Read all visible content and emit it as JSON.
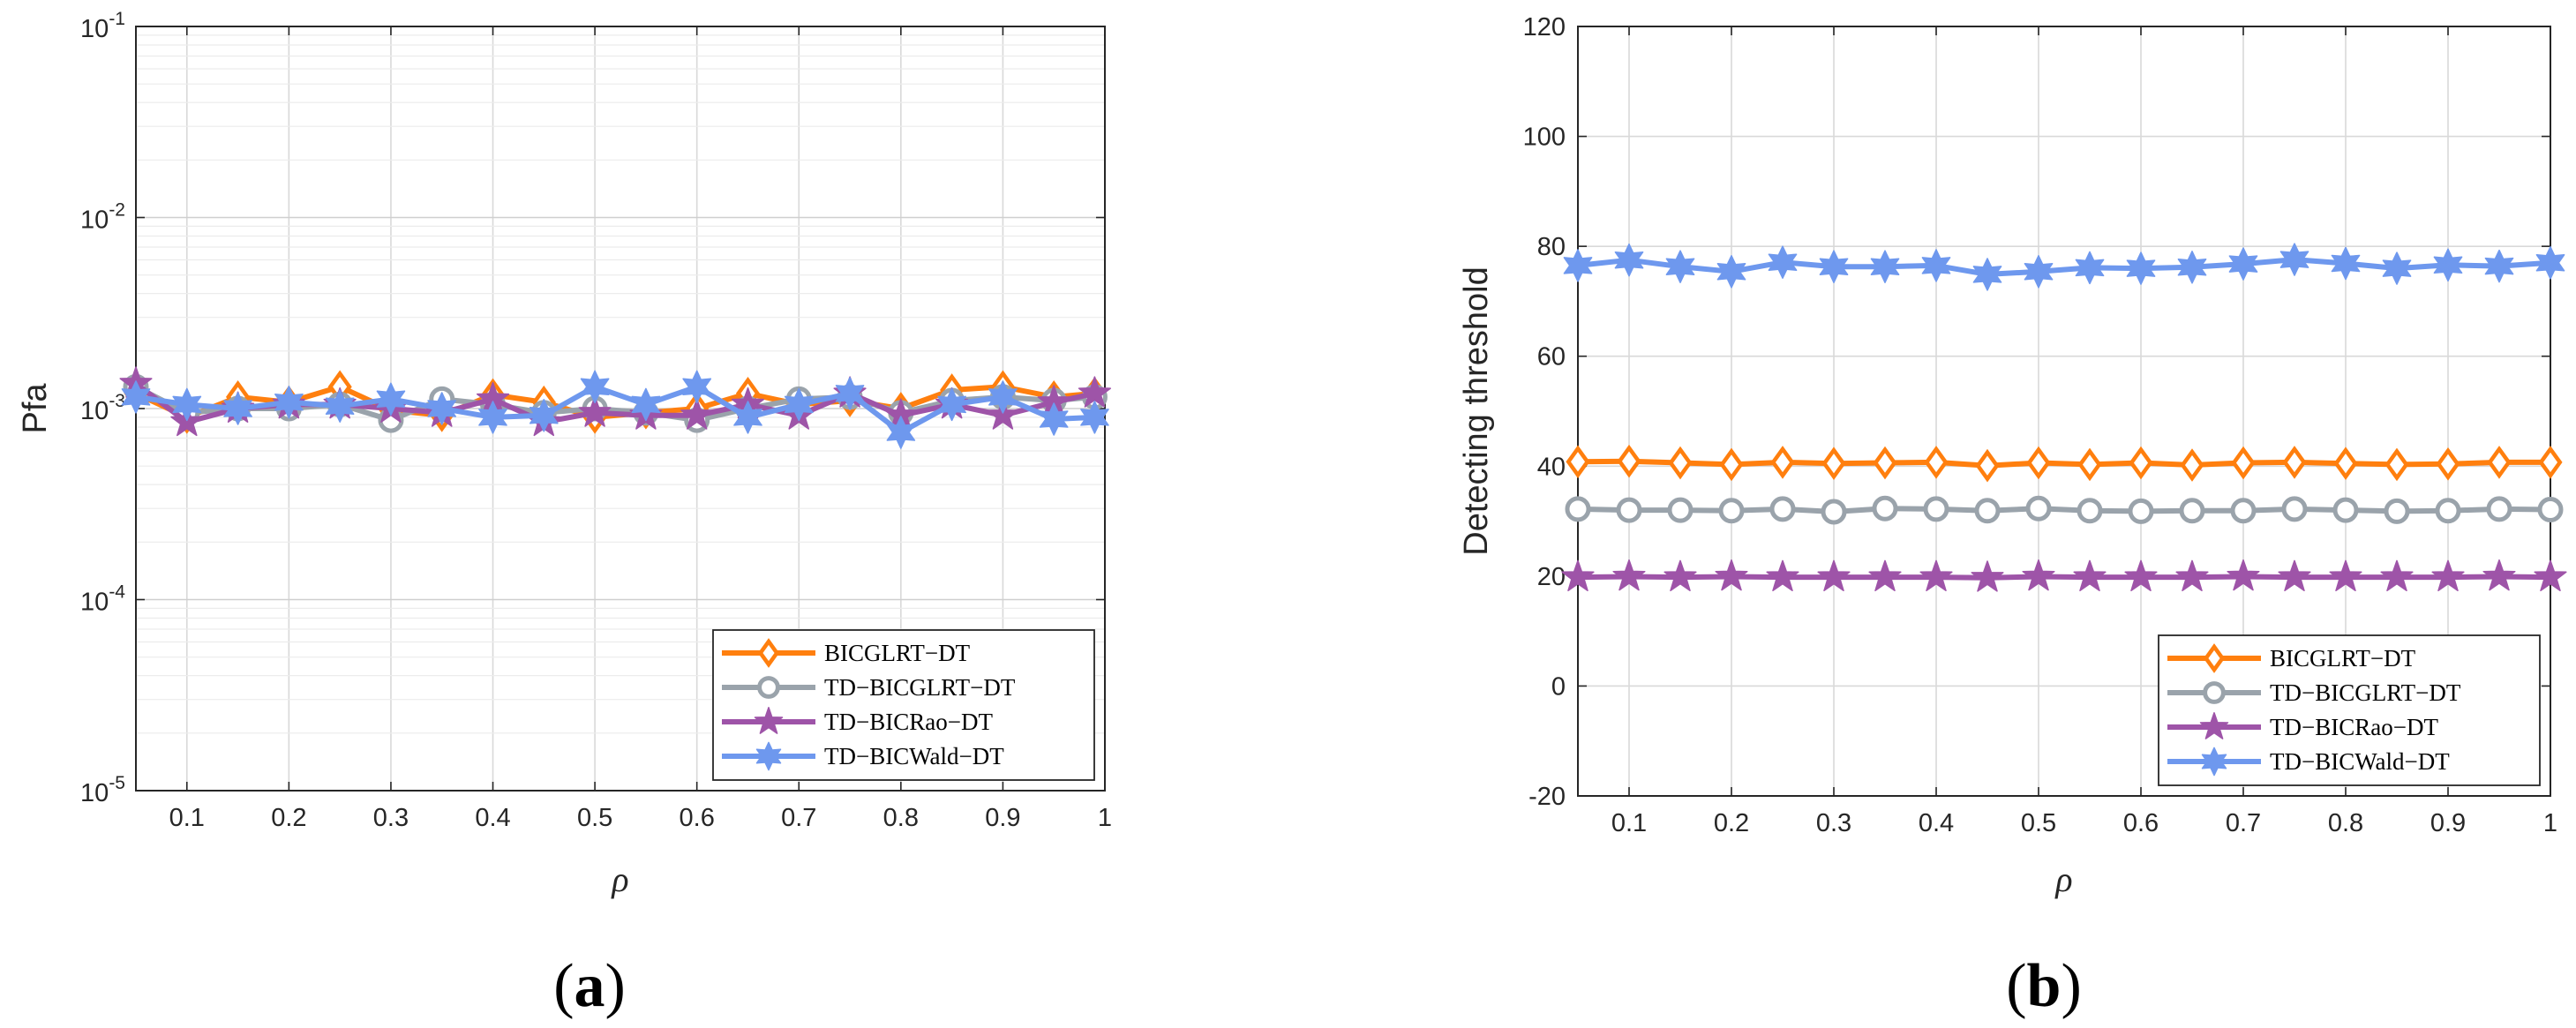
{
  "colors": {
    "BICGLRT-DT": "#FF7F0E",
    "TD-BICGLRT-DT": "#9AA3AB",
    "TD-BICRao-DT": "#9E54A8",
    "TD-BICWald-DT": "#6E98EE"
  },
  "chart_data": [
    {
      "type": "line",
      "panel_label": "a",
      "panel_label_parts": {
        "open": "(",
        "letter": "a",
        "close": ")"
      },
      "xlabel": "ρ",
      "ylabel": "Pfa",
      "yscale": "log",
      "xlim": [
        0.05,
        1.0
      ],
      "ylim": [
        1e-05,
        0.1
      ],
      "xticks": [
        "0.1",
        "0.2",
        "0.3",
        "0.4",
        "0.5",
        "0.6",
        "0.7",
        "0.8",
        "0.9",
        "1"
      ],
      "yticks": [
        {
          "base": "10",
          "exp": "-1"
        },
        {
          "base": "10",
          "exp": "-2"
        },
        {
          "base": "10",
          "exp": "-3"
        },
        {
          "base": "10",
          "exp": "-4"
        },
        {
          "base": "10",
          "exp": "-5"
        }
      ],
      "grid": true,
      "legend_position": "bottom-right",
      "x": [
        0.05,
        0.1,
        0.15,
        0.2,
        0.25,
        0.3,
        0.35,
        0.4,
        0.45,
        0.5,
        0.55,
        0.6,
        0.65,
        0.7,
        0.75,
        0.8,
        0.85,
        0.9,
        0.95,
        0.99
      ],
      "series": [
        {
          "name": "BICGLRT-DT",
          "marker": "diamond",
          "values": [
            0.0012,
            0.0009,
            0.00115,
            0.00108,
            0.0013,
            0.00098,
            0.00092,
            0.00118,
            0.00108,
            0.0009,
            0.00095,
            0.001,
            0.0012,
            0.00105,
            0.0011,
            0.001,
            0.00125,
            0.0013,
            0.00115,
            0.0012
          ]
        },
        {
          "name": "TD-BICGLRT-DT",
          "marker": "circle",
          "values": [
            0.0013,
            0.00095,
            0.001,
            0.001,
            0.00105,
            0.00087,
            0.00112,
            0.00105,
            0.00095,
            0.001,
            0.00095,
            0.00087,
            0.001,
            0.00112,
            0.00115,
            0.00095,
            0.0011,
            0.00115,
            0.0011,
            0.00115
          ]
        },
        {
          "name": "TD-BICRao-DT",
          "marker": "star",
          "values": [
            0.00135,
            0.00085,
            0.001,
            0.00105,
            0.00105,
            0.001,
            0.00095,
            0.00112,
            0.00085,
            0.00095,
            0.00092,
            0.00092,
            0.00105,
            0.00092,
            0.0012,
            0.00092,
            0.00105,
            0.00092,
            0.00108,
            0.0012
          ]
        },
        {
          "name": "TD-BICWald-DT",
          "marker": "hexagram",
          "values": [
            0.00115,
            0.00105,
            0.001,
            0.00108,
            0.00103,
            0.00112,
            0.001,
            0.0009,
            0.00092,
            0.0013,
            0.00105,
            0.0013,
            0.0009,
            0.00105,
            0.0012,
            0.00075,
            0.00105,
            0.00115,
            0.00088,
            0.0009
          ]
        }
      ]
    },
    {
      "type": "line",
      "panel_label": "b",
      "panel_label_parts": {
        "open": "(",
        "letter": "b",
        "close": ")"
      },
      "xlabel": "ρ",
      "ylabel": "Detecting threshold",
      "yscale": "linear",
      "xlim": [
        0.05,
        1.0
      ],
      "ylim": [
        -20,
        120
      ],
      "xticks": [
        "0.1",
        "0.2",
        "0.3",
        "0.4",
        "0.5",
        "0.6",
        "0.7",
        "0.8",
        "0.9",
        "1"
      ],
      "yticks": [
        "120",
        "100",
        "80",
        "60",
        "40",
        "20",
        "0",
        "-20"
      ],
      "grid": true,
      "legend_position": "bottom-right",
      "x": [
        0.05,
        0.1,
        0.15,
        0.2,
        0.25,
        0.3,
        0.35,
        0.4,
        0.45,
        0.5,
        0.55,
        0.6,
        0.65,
        0.7,
        0.75,
        0.8,
        0.85,
        0.9,
        0.95,
        1.0
      ],
      "series": [
        {
          "name": "BICGLRT-DT",
          "marker": "diamond",
          "values": [
            40.8,
            40.9,
            40.6,
            40.3,
            40.7,
            40.5,
            40.6,
            40.7,
            40.1,
            40.6,
            40.3,
            40.6,
            40.2,
            40.6,
            40.7,
            40.5,
            40.3,
            40.4,
            40.7,
            40.7
          ]
        },
        {
          "name": "TD-BICGLRT-DT",
          "marker": "circle",
          "values": [
            32.2,
            32.0,
            32.0,
            31.9,
            32.2,
            31.7,
            32.3,
            32.2,
            31.9,
            32.3,
            31.9,
            31.8,
            31.9,
            31.9,
            32.2,
            32.0,
            31.8,
            31.9,
            32.2,
            32.1
          ]
        },
        {
          "name": "TD-BICRao-DT",
          "marker": "star",
          "values": [
            19.8,
            19.9,
            19.8,
            19.9,
            19.8,
            19.8,
            19.8,
            19.8,
            19.7,
            19.9,
            19.8,
            19.8,
            19.8,
            19.9,
            19.8,
            19.8,
            19.8,
            19.8,
            19.9,
            19.8
          ]
        },
        {
          "name": "TD-BICWald-DT",
          "marker": "hexagram",
          "values": [
            76.5,
            77.5,
            76.3,
            75.4,
            77.1,
            76.3,
            76.3,
            76.5,
            74.9,
            75.4,
            76.1,
            76.0,
            76.2,
            76.8,
            77.6,
            76.9,
            76.0,
            76.6,
            76.4,
            77.0
          ]
        }
      ]
    }
  ]
}
